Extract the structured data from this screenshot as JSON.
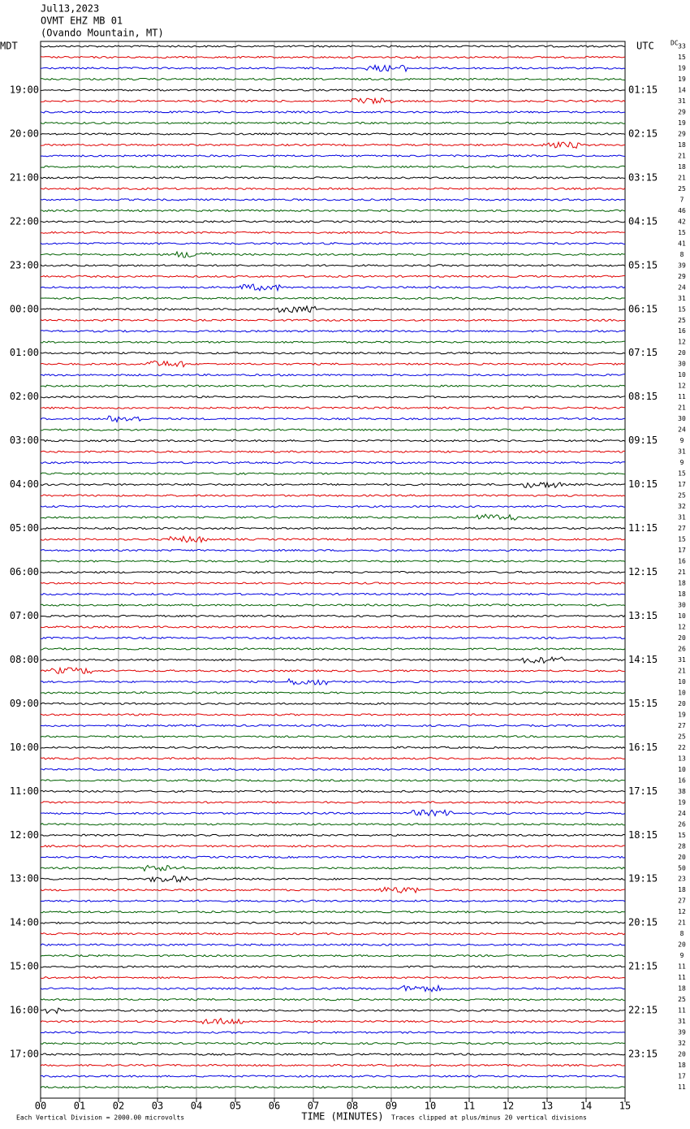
{
  "chart_data": {
    "type": "helicorder",
    "title_lines": [
      "Jul13,2023",
      "OVMT EHZ MB 01",
      "(Ovando Mountain, MT)"
    ],
    "left_zone": "MDT",
    "right_zone": "UTC",
    "dc_header": "DC",
    "traces_per_row": 4,
    "trace_colors": [
      "#000000",
      "#e00000",
      "#0000e0",
      "#006000"
    ],
    "hour_labels_local": [
      null,
      "19:00",
      "20:00",
      "21:00",
      "22:00",
      "23:00",
      "00:00",
      "01:00",
      "02:00",
      "03:00",
      "04:00",
      "05:00",
      "06:00",
      "07:00",
      "08:00",
      "09:00",
      "10:00",
      "11:00",
      "12:00",
      "13:00",
      "14:00",
      "15:00",
      "16:00",
      "17:00"
    ],
    "hour_labels_utc": [
      null,
      "01:15",
      "02:15",
      "03:15",
      "04:15",
      "05:15",
      "06:15",
      "07:15",
      "08:15",
      "09:15",
      "10:15",
      "11:15",
      "12:15",
      "13:15",
      "14:15",
      "15:15",
      "16:15",
      "17:15",
      "18:15",
      "19:15",
      "20:15",
      "21:15",
      "22:15",
      "23:15"
    ],
    "dc_offsets": [
      33,
      15,
      19,
      19,
      14,
      31,
      29,
      19,
      29,
      18,
      21,
      18,
      21,
      25,
      7,
      46,
      42,
      15,
      41,
      8,
      39,
      29,
      24,
      31,
      15,
      25,
      16,
      12,
      20,
      30,
      10,
      12,
      11,
      21,
      30,
      24,
      9,
      31,
      9,
      15,
      17,
      25,
      32,
      31,
      27,
      15,
      17,
      16,
      21,
      18,
      18,
      30,
      10,
      12,
      20,
      26,
      31,
      21,
      10,
      10,
      20,
      19,
      27,
      25,
      22,
      13,
      10,
      16,
      38,
      19,
      24,
      26,
      15,
      28,
      20,
      50,
      23,
      18,
      27,
      12,
      21,
      8,
      20,
      9,
      11,
      11,
      18,
      25,
      11,
      31,
      39,
      32,
      20,
      18,
      17,
      11
    ],
    "xlim": [
      0,
      15
    ],
    "xticks": [
      {
        "value": 0,
        "label": "00"
      },
      {
        "value": 1,
        "label": "01"
      },
      {
        "value": 2,
        "label": "02"
      },
      {
        "value": 3,
        "label": "03"
      },
      {
        "value": 4,
        "label": "04"
      },
      {
        "value": 5,
        "label": "05"
      },
      {
        "value": 6,
        "label": "06"
      },
      {
        "value": 7,
        "label": "07"
      },
      {
        "value": 8,
        "label": "08"
      },
      {
        "value": 9,
        "label": "09"
      },
      {
        "value": 10,
        "label": "10"
      },
      {
        "value": 11,
        "label": "11"
      },
      {
        "value": 12,
        "label": "12"
      },
      {
        "value": 13,
        "label": "13"
      },
      {
        "value": 14,
        "label": "14"
      },
      {
        "value": 15,
        "label": "15"
      }
    ],
    "x_label": "TIME (MINUTES)",
    "scale_note": "Each Vertical Division = 2000.00 microvolts",
    "clip_note": "Traces clipped at plus/minus 20 vertical divisions",
    "grid": true
  }
}
